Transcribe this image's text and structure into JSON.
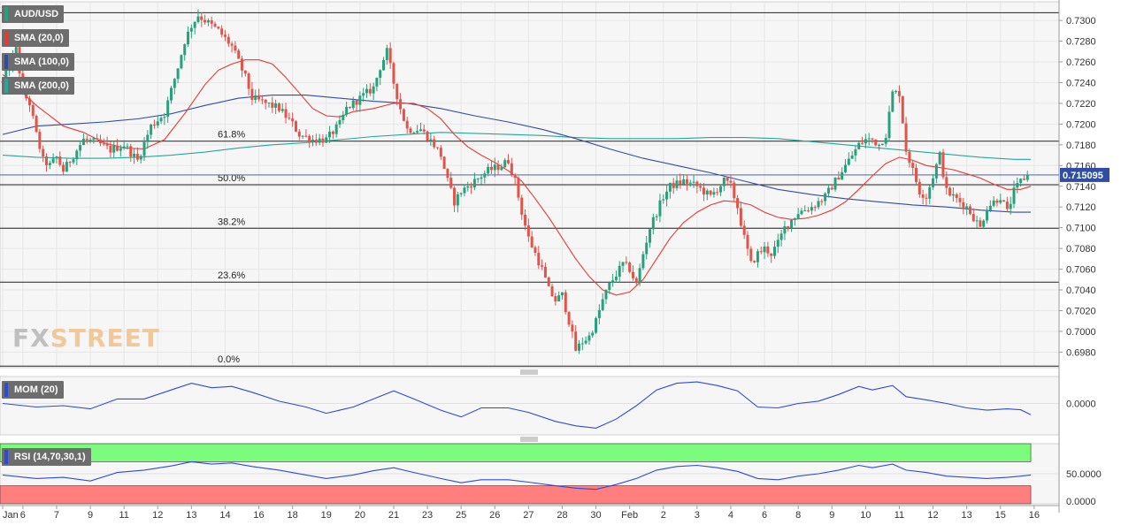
{
  "colors": {
    "bull": "#26a17b",
    "bear": "#e0544a",
    "sma20": "#e53935",
    "sma100": "#2f4ea1",
    "sma200": "#26a69a",
    "mom": "#2b4bdb",
    "rsi": "#2b4bdb",
    "rsi_upper_zone": "#7cfc7c",
    "rsi_lower_zone": "#ff7f7f"
  },
  "legend": {
    "pair": "AUD/USD",
    "sma20": "SMA (20,0)",
    "sma100": "SMA (100,0)",
    "sma200": "SMA (200,0)",
    "mom": "MOM (20)",
    "rsi": "RSI (14,70,30,1)"
  },
  "watermark": {
    "fx": "FX",
    "street": "STREET"
  },
  "price_label": "0.715095",
  "chart_data": {
    "type": "candlestick",
    "pair": "AUD/USD",
    "ylim": [
      0.6965,
      0.7318
    ],
    "y_ticks": [
      "0.7300",
      "0.7280",
      "0.7260",
      "0.7240",
      "0.7220",
      "0.7200",
      "0.7180",
      "0.7160",
      "0.7140",
      "0.7120",
      "0.7100",
      "0.7080",
      "0.7060",
      "0.7040",
      "0.7020",
      "0.7000",
      "0.6980"
    ],
    "x_ticks": [
      {
        "label": "Jan",
        "i": 0
      },
      {
        "label": "6",
        "i": 6
      },
      {
        "label": "7",
        "i": 16
      },
      {
        "label": "9",
        "i": 26
      },
      {
        "label": "11",
        "i": 36
      },
      {
        "label": "12",
        "i": 46
      },
      {
        "label": "13",
        "i": 56
      },
      {
        "label": "14",
        "i": 66
      },
      {
        "label": "16",
        "i": 76
      },
      {
        "label": "18",
        "i": 86
      },
      {
        "label": "19",
        "i": 96
      },
      {
        "label": "20",
        "i": 106
      },
      {
        "label": "21",
        "i": 116
      },
      {
        "label": "23",
        "i": 126
      },
      {
        "label": "25",
        "i": 136
      },
      {
        "label": "26",
        "i": 146
      },
      {
        "label": "27",
        "i": 156
      },
      {
        "label": "28",
        "i": 166
      },
      {
        "label": "30",
        "i": 176
      },
      {
        "label": "Feb",
        "i": 186
      },
      {
        "label": "2",
        "i": 196
      },
      {
        "label": "3",
        "i": 206
      },
      {
        "label": "4",
        "i": 216
      },
      {
        "label": "6",
        "i": 226
      },
      {
        "label": "8",
        "i": 236
      },
      {
        "label": "9",
        "i": 246
      },
      {
        "label": "10",
        "i": 256
      },
      {
        "label": "11",
        "i": 266
      },
      {
        "label": "12",
        "i": 276
      },
      {
        "label": "13",
        "i": 286
      },
      {
        "label": "15",
        "i": 296
      },
      {
        "label": "16",
        "i": 306
      }
    ],
    "fib_levels": [
      {
        "label": "61.8%",
        "value": 0.71835
      },
      {
        "label": "50.0%",
        "value": 0.71415
      },
      {
        "label": "38.2%",
        "value": 0.70995
      },
      {
        "label": "23.6%",
        "value": 0.70475
      },
      {
        "label": "0.0%",
        "value": 0.69665
      }
    ],
    "top_line": 0.73075,
    "current_price": 0.715095,
    "anchors": [
      [
        0,
        0.724
      ],
      [
        2,
        0.7255
      ],
      [
        4,
        0.7272
      ],
      [
        6,
        0.723
      ],
      [
        8,
        0.722
      ],
      [
        10,
        0.719
      ],
      [
        12,
        0.7165
      ],
      [
        14,
        0.716
      ],
      [
        16,
        0.7168
      ],
      [
        18,
        0.7155
      ],
      [
        20,
        0.7165
      ],
      [
        24,
        0.7185
      ],
      [
        28,
        0.7182
      ],
      [
        32,
        0.7175
      ],
      [
        36,
        0.718
      ],
      [
        40,
        0.7165
      ],
      [
        44,
        0.7198
      ],
      [
        48,
        0.721
      ],
      [
        52,
        0.7255
      ],
      [
        54,
        0.728
      ],
      [
        56,
        0.7295
      ],
      [
        58,
        0.7305
      ],
      [
        60,
        0.73
      ],
      [
        64,
        0.729
      ],
      [
        68,
        0.7275
      ],
      [
        72,
        0.7245
      ],
      [
        74,
        0.7225
      ],
      [
        78,
        0.722
      ],
      [
        82,
        0.7215
      ],
      [
        86,
        0.72
      ],
      [
        88,
        0.719
      ],
      [
        92,
        0.7185
      ],
      [
        96,
        0.7185
      ],
      [
        100,
        0.72
      ],
      [
        102,
        0.7215
      ],
      [
        106,
        0.7225
      ],
      [
        110,
        0.7235
      ],
      [
        112,
        0.7255
      ],
      [
        114,
        0.727
      ],
      [
        116,
        0.724
      ],
      [
        118,
        0.7215
      ],
      [
        120,
        0.7195
      ],
      [
        124,
        0.7195
      ],
      [
        128,
        0.718
      ],
      [
        130,
        0.717
      ],
      [
        132,
        0.7145
      ],
      [
        134,
        0.7125
      ],
      [
        136,
        0.7135
      ],
      [
        140,
        0.7145
      ],
      [
        144,
        0.7155
      ],
      [
        148,
        0.716
      ],
      [
        150,
        0.7165
      ],
      [
        152,
        0.7145
      ],
      [
        154,
        0.7115
      ],
      [
        156,
        0.709
      ],
      [
        158,
        0.7075
      ],
      [
        160,
        0.706
      ],
      [
        162,
        0.704
      ],
      [
        164,
        0.703
      ],
      [
        166,
        0.7035
      ],
      [
        168,
        0.701
      ],
      [
        170,
        0.6982
      ],
      [
        172,
        0.699
      ],
      [
        174,
        0.6995
      ],
      [
        176,
        0.701
      ],
      [
        178,
        0.703
      ],
      [
        180,
        0.7045
      ],
      [
        182,
        0.7055
      ],
      [
        184,
        0.7065
      ],
      [
        186,
        0.706
      ],
      [
        188,
        0.7045
      ],
      [
        190,
        0.7075
      ],
      [
        192,
        0.71
      ],
      [
        194,
        0.7115
      ],
      [
        196,
        0.713
      ],
      [
        198,
        0.714
      ],
      [
        202,
        0.7145
      ],
      [
        206,
        0.714
      ],
      [
        210,
        0.713
      ],
      [
        214,
        0.7145
      ],
      [
        216,
        0.714
      ],
      [
        218,
        0.712
      ],
      [
        220,
        0.709
      ],
      [
        222,
        0.7065
      ],
      [
        224,
        0.7075
      ],
      [
        226,
        0.708
      ],
      [
        228,
        0.7075
      ],
      [
        230,
        0.7085
      ],
      [
        232,
        0.71
      ],
      [
        236,
        0.7115
      ],
      [
        240,
        0.712
      ],
      [
        244,
        0.713
      ],
      [
        248,
        0.715
      ],
      [
        252,
        0.717
      ],
      [
        254,
        0.718
      ],
      [
        256,
        0.7185
      ],
      [
        258,
        0.7185
      ],
      [
        260,
        0.718
      ],
      [
        262,
        0.719
      ],
      [
        264,
        0.723
      ],
      [
        266,
        0.723
      ],
      [
        268,
        0.7175
      ],
      [
        270,
        0.7155
      ],
      [
        272,
        0.7135
      ],
      [
        274,
        0.713
      ],
      [
        276,
        0.715
      ],
      [
        278,
        0.717
      ],
      [
        280,
        0.7135
      ],
      [
        282,
        0.713
      ],
      [
        284,
        0.7125
      ],
      [
        286,
        0.712
      ],
      [
        288,
        0.711
      ],
      [
        290,
        0.71
      ],
      [
        292,
        0.712
      ],
      [
        294,
        0.7125
      ],
      [
        296,
        0.713
      ],
      [
        298,
        0.7115
      ],
      [
        300,
        0.7135
      ],
      [
        302,
        0.7145
      ],
      [
        304,
        0.7151
      ]
    ],
    "sma20": [
      [
        0,
        0.7248
      ],
      [
        6,
        0.723
      ],
      [
        10,
        0.7218
      ],
      [
        18,
        0.7198
      ],
      [
        24,
        0.7192
      ],
      [
        30,
        0.7182
      ],
      [
        36,
        0.7177
      ],
      [
        42,
        0.7176
      ],
      [
        48,
        0.7185
      ],
      [
        54,
        0.721
      ],
      [
        60,
        0.7238
      ],
      [
        64,
        0.7252
      ],
      [
        68,
        0.7258
      ],
      [
        72,
        0.7262
      ],
      [
        76,
        0.7262
      ],
      [
        80,
        0.7258
      ],
      [
        84,
        0.7245
      ],
      [
        88,
        0.723
      ],
      [
        92,
        0.7215
      ],
      [
        96,
        0.7208
      ],
      [
        100,
        0.7207
      ],
      [
        104,
        0.7212
      ],
      [
        110,
        0.7215
      ],
      [
        116,
        0.722
      ],
      [
        122,
        0.722
      ],
      [
        126,
        0.7215
      ],
      [
        130,
        0.7205
      ],
      [
        134,
        0.719
      ],
      [
        138,
        0.7178
      ],
      [
        142,
        0.717
      ],
      [
        146,
        0.7163
      ],
      [
        150,
        0.7155
      ],
      [
        154,
        0.7145
      ],
      [
        158,
        0.7128
      ],
      [
        162,
        0.711
      ],
      [
        166,
        0.709
      ],
      [
        170,
        0.707
      ],
      [
        174,
        0.7053
      ],
      [
        178,
        0.704
      ],
      [
        182,
        0.7035
      ],
      [
        186,
        0.7038
      ],
      [
        190,
        0.705
      ],
      [
        194,
        0.707
      ],
      [
        198,
        0.709
      ],
      [
        202,
        0.7105
      ],
      [
        206,
        0.7115
      ],
      [
        210,
        0.7122
      ],
      [
        214,
        0.7126
      ],
      [
        218,
        0.7125
      ],
      [
        222,
        0.7122
      ],
      [
        226,
        0.7115
      ],
      [
        230,
        0.711
      ],
      [
        234,
        0.7108
      ],
      [
        238,
        0.7109
      ],
      [
        242,
        0.7112
      ],
      [
        246,
        0.7117
      ],
      [
        250,
        0.7125
      ],
      [
        254,
        0.7137
      ],
      [
        258,
        0.715
      ],
      [
        262,
        0.7162
      ],
      [
        266,
        0.7168
      ],
      [
        270,
        0.7165
      ],
      [
        274,
        0.716
      ],
      [
        278,
        0.7158
      ],
      [
        282,
        0.7156
      ],
      [
        286,
        0.7152
      ],
      [
        290,
        0.7148
      ],
      [
        294,
        0.7142
      ],
      [
        298,
        0.7137
      ],
      [
        302,
        0.7137
      ],
      [
        305,
        0.714
      ]
    ],
    "sma100": [
      [
        0,
        0.719
      ],
      [
        10,
        0.7198
      ],
      [
        20,
        0.72
      ],
      [
        30,
        0.7202
      ],
      [
        40,
        0.7205
      ],
      [
        50,
        0.721
      ],
      [
        60,
        0.7218
      ],
      [
        70,
        0.7225
      ],
      [
        80,
        0.7228
      ],
      [
        90,
        0.7228
      ],
      [
        100,
        0.7225
      ],
      [
        110,
        0.7222
      ],
      [
        120,
        0.722
      ],
      [
        130,
        0.7215
      ],
      [
        140,
        0.7208
      ],
      [
        150,
        0.7202
      ],
      [
        160,
        0.7195
      ],
      [
        170,
        0.7186
      ],
      [
        180,
        0.7176
      ],
      [
        190,
        0.7167
      ],
      [
        200,
        0.716
      ],
      [
        210,
        0.7153
      ],
      [
        220,
        0.7145
      ],
      [
        230,
        0.7137
      ],
      [
        240,
        0.7132
      ],
      [
        250,
        0.7128
      ],
      [
        260,
        0.7125
      ],
      [
        270,
        0.7122
      ],
      [
        280,
        0.712
      ],
      [
        290,
        0.7117
      ],
      [
        300,
        0.7115
      ],
      [
        305,
        0.7115
      ]
    ],
    "sma200": [
      [
        0,
        0.717
      ],
      [
        10,
        0.7168
      ],
      [
        20,
        0.7167
      ],
      [
        30,
        0.7167
      ],
      [
        40,
        0.7168
      ],
      [
        50,
        0.717
      ],
      [
        60,
        0.7173
      ],
      [
        70,
        0.7177
      ],
      [
        80,
        0.718
      ],
      [
        90,
        0.7182
      ],
      [
        100,
        0.7185
      ],
      [
        110,
        0.7188
      ],
      [
        120,
        0.719
      ],
      [
        130,
        0.7192
      ],
      [
        140,
        0.7191
      ],
      [
        150,
        0.719
      ],
      [
        160,
        0.7189
      ],
      [
        170,
        0.7187
      ],
      [
        180,
        0.7186
      ],
      [
        190,
        0.7186
      ],
      [
        200,
        0.7186
      ],
      [
        210,
        0.7187
      ],
      [
        220,
        0.7187
      ],
      [
        230,
        0.7186
      ],
      [
        240,
        0.7183
      ],
      [
        250,
        0.718
      ],
      [
        260,
        0.7177
      ],
      [
        270,
        0.7174
      ],
      [
        280,
        0.7171
      ],
      [
        290,
        0.7168
      ],
      [
        300,
        0.7166
      ],
      [
        305,
        0.7166
      ]
    ],
    "momentum": {
      "tick_label": "0.0000",
      "ylim": [
        -0.007,
        0.006
      ],
      "points": [
        [
          0,
          0.0
        ],
        [
          10,
          -0.0008
        ],
        [
          18,
          -0.0005
        ],
        [
          26,
          -0.0012
        ],
        [
          34,
          0.001
        ],
        [
          42,
          0.001
        ],
        [
          50,
          0.003
        ],
        [
          56,
          0.0045
        ],
        [
          62,
          0.0035
        ],
        [
          68,
          0.0038
        ],
        [
          74,
          0.0025
        ],
        [
          82,
          0.0005
        ],
        [
          90,
          -0.0008
        ],
        [
          96,
          -0.0022
        ],
        [
          104,
          -0.0008
        ],
        [
          110,
          0.001
        ],
        [
          116,
          0.0028
        ],
        [
          122,
          0.001
        ],
        [
          130,
          -0.0015
        ],
        [
          136,
          -0.003
        ],
        [
          142,
          -0.001
        ],
        [
          150,
          -0.001
        ],
        [
          156,
          -0.002
        ],
        [
          164,
          -0.004
        ],
        [
          170,
          -0.005
        ],
        [
          176,
          -0.0055
        ],
        [
          182,
          -0.0035
        ],
        [
          188,
          -0.0005
        ],
        [
          194,
          0.003
        ],
        [
          200,
          0.0045
        ],
        [
          206,
          0.0048
        ],
        [
          212,
          0.004
        ],
        [
          218,
          0.0028
        ],
        [
          224,
          -0.0008
        ],
        [
          230,
          -0.001
        ],
        [
          236,
          0.0
        ],
        [
          242,
          0.0005
        ],
        [
          248,
          0.002
        ],
        [
          254,
          0.0038
        ],
        [
          258,
          0.003
        ],
        [
          264,
          0.004
        ],
        [
          268,
          0.0015
        ],
        [
          274,
          0.0008
        ],
        [
          280,
          0.0
        ],
        [
          286,
          -0.001
        ],
        [
          292,
          -0.0015
        ],
        [
          298,
          -0.0012
        ],
        [
          302,
          -0.0014
        ],
        [
          305,
          -0.0025
        ]
      ]
    },
    "rsi": {
      "tick_labels": [
        "50.0000",
        "0.0000"
      ],
      "ylim": [
        0,
        100
      ],
      "upper": 70,
      "lower": 30,
      "points": [
        [
          0,
          48
        ],
        [
          10,
          42
        ],
        [
          18,
          44
        ],
        [
          26,
          38
        ],
        [
          34,
          52
        ],
        [
          42,
          56
        ],
        [
          50,
          63
        ],
        [
          56,
          70
        ],
        [
          62,
          66
        ],
        [
          68,
          68
        ],
        [
          74,
          62
        ],
        [
          82,
          56
        ],
        [
          90,
          48
        ],
        [
          96,
          42
        ],
        [
          104,
          48
        ],
        [
          110,
          55
        ],
        [
          116,
          60
        ],
        [
          122,
          52
        ],
        [
          130,
          42
        ],
        [
          136,
          35
        ],
        [
          142,
          40
        ],
        [
          150,
          40
        ],
        [
          156,
          36
        ],
        [
          164,
          30
        ],
        [
          170,
          26
        ],
        [
          176,
          24
        ],
        [
          182,
          32
        ],
        [
          188,
          42
        ],
        [
          194,
          56
        ],
        [
          200,
          62
        ],
        [
          206,
          64
        ],
        [
          212,
          60
        ],
        [
          218,
          54
        ],
        [
          224,
          42
        ],
        [
          230,
          40
        ],
        [
          236,
          46
        ],
        [
          242,
          50
        ],
        [
          248,
          56
        ],
        [
          254,
          64
        ],
        [
          258,
          60
        ],
        [
          264,
          66
        ],
        [
          268,
          56
        ],
        [
          274,
          52
        ],
        [
          280,
          46
        ],
        [
          286,
          44
        ],
        [
          292,
          42
        ],
        [
          298,
          44
        ],
        [
          302,
          46
        ],
        [
          305,
          48
        ]
      ]
    }
  }
}
